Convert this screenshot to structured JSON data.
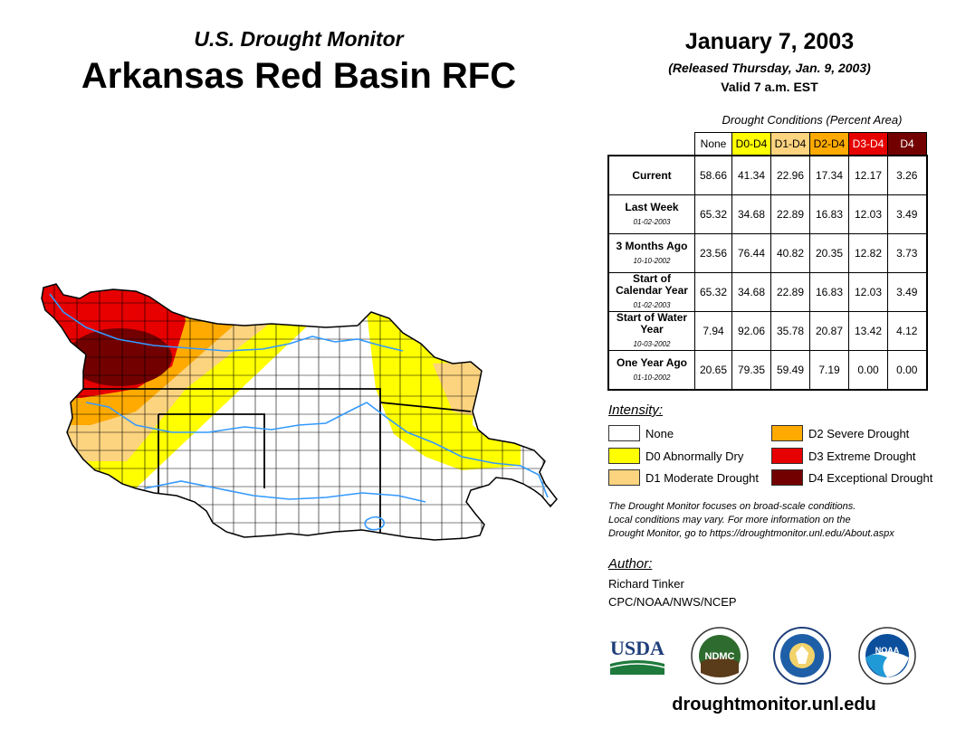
{
  "header": {
    "subtitle": "U.S. Drought Monitor",
    "title": "Arkansas Red Basin RFC",
    "date": "January 7, 2003",
    "released": "(Released Thursday, Jan. 9, 2003)",
    "valid": "Valid 7 a.m. EST"
  },
  "table": {
    "caption": "Drought Conditions (Percent Area)",
    "columns": [
      "None",
      "D0-D4",
      "D1-D4",
      "D2-D4",
      "D3-D4",
      "D4"
    ],
    "column_colors": [
      "#ffffff",
      "#ffff00",
      "#fcd37f",
      "#ffaa00",
      "#e60000",
      "#730000"
    ],
    "rows": [
      {
        "label": "Current",
        "date": "",
        "values": [
          "58.66",
          "41.34",
          "22.96",
          "17.34",
          "12.17",
          "3.26"
        ]
      },
      {
        "label": "Last Week",
        "date": "01-02-2003",
        "values": [
          "65.32",
          "34.68",
          "22.89",
          "16.83",
          "12.03",
          "3.49"
        ]
      },
      {
        "label": "3 Months Ago",
        "date": "10-10-2002",
        "values": [
          "23.56",
          "76.44",
          "40.82",
          "20.35",
          "12.82",
          "3.73"
        ]
      },
      {
        "label": "Start of Calendar Year",
        "date": "01-02-2003",
        "values": [
          "65.32",
          "34.68",
          "22.89",
          "16.83",
          "12.03",
          "3.49"
        ]
      },
      {
        "label": "Start of Water Year",
        "date": "10-03-2002",
        "values": [
          "7.94",
          "92.06",
          "35.78",
          "20.87",
          "13.42",
          "4.12"
        ]
      },
      {
        "label": "One Year Ago",
        "date": "01-10-2002",
        "values": [
          "20.65",
          "79.35",
          "59.49",
          "7.19",
          "0.00",
          "0.00"
        ]
      }
    ]
  },
  "legend": {
    "title": "Intensity:",
    "items": [
      {
        "label": "None",
        "color": "#ffffff"
      },
      {
        "label": "D0 Abnormally Dry",
        "color": "#ffff00"
      },
      {
        "label": "D1 Moderate Drought",
        "color": "#fcd37f"
      },
      {
        "label": "D2 Severe Drought",
        "color": "#ffaa00"
      },
      {
        "label": "D3 Extreme Drought",
        "color": "#e60000"
      },
      {
        "label": "D4 Exceptional Drought",
        "color": "#730000"
      }
    ]
  },
  "note": {
    "line1": "The Drought Monitor focuses on broad-scale conditions.",
    "line2": "Local conditions may vary. For more information on the",
    "line3": "Drought Monitor, go to https://droughtmonitor.unl.edu/About.aspx"
  },
  "author": {
    "title": "Author:",
    "name": "Richard Tinker",
    "org": "CPC/NOAA/NWS/NCEP"
  },
  "logos": {
    "usda": "USDA",
    "ndmc": "NDMC",
    "noaa": "NOAA"
  },
  "website": "droughtmonitor.unl.edu"
}
